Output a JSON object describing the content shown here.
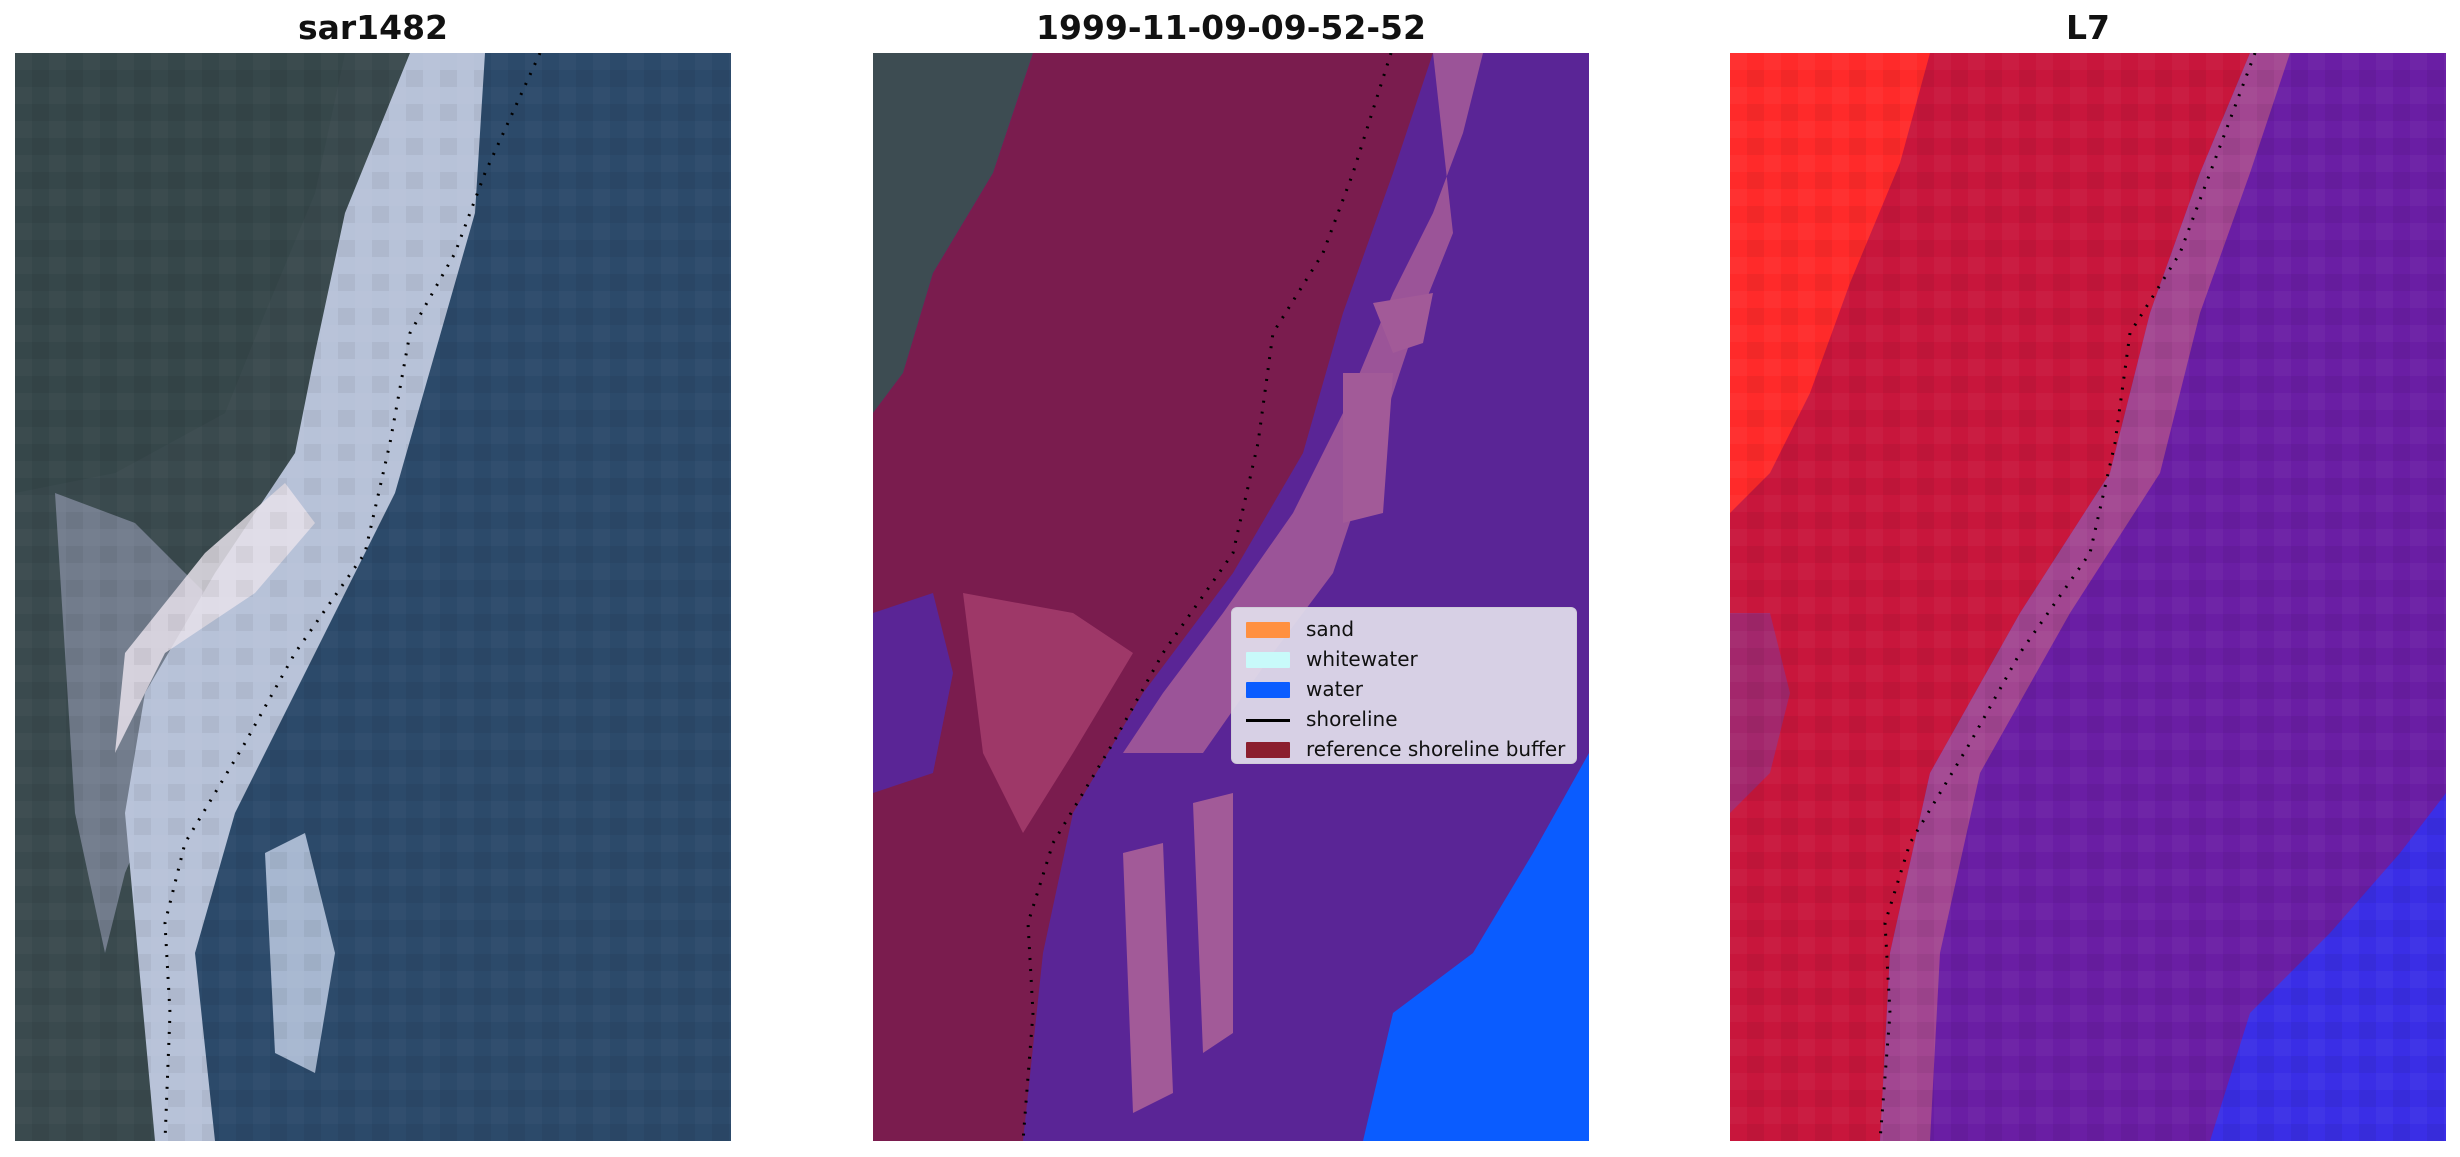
{
  "panels": [
    {
      "title": "sar1482"
    },
    {
      "title": "1999-11-09-09-52-52"
    },
    {
      "title": "L7"
    }
  ],
  "legend": {
    "items": [
      {
        "label": "sand",
        "color": "#ff9040",
        "kind": "patch"
      },
      {
        "label": "whitewater",
        "color": "#c8fafa",
        "kind": "patch"
      },
      {
        "label": "water",
        "color": "#0a5cff",
        "kind": "patch"
      },
      {
        "label": "shoreline",
        "color": "#000000",
        "kind": "line"
      },
      {
        "label": "reference shoreline buffer",
        "color": "#8b1e2e",
        "kind": "patch"
      }
    ]
  },
  "colors": {
    "sea_rgb": "#2f4a66",
    "land_rgb": "#3a4a4c",
    "surf_rgb": "#b9c4d6",
    "buffer_overlay": "#8b1e2e",
    "water_class_overlay": "#5a2596",
    "water_class_pure": "#0a5cff",
    "ndwi_land": "#d01a3c",
    "ndwi_bright_land": "#ff2a2a",
    "ndwi_water": "#6e1fa0",
    "ndwi_deep_water": "#3a2ee6"
  }
}
